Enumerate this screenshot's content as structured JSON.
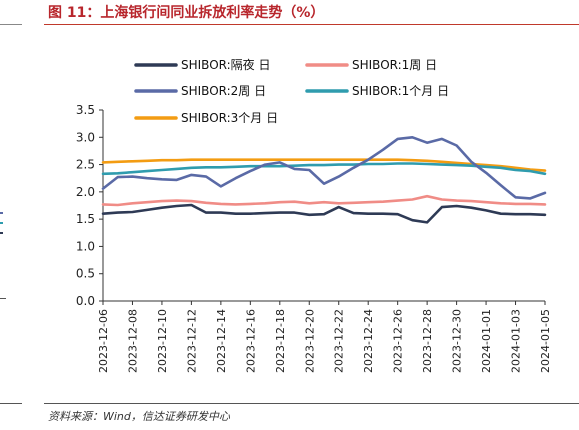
{
  "title": "图 11：上海银行间同业拆放利率走势（%）",
  "source": "资料来源：Wind，信达证券研发中心",
  "chart_data": {
    "type": "line",
    "ylim": [
      0,
      3.5
    ],
    "yticks": [
      "0.0",
      "0.5",
      "1.0",
      "1.5",
      "2.0",
      "2.5",
      "3.0",
      "3.5"
    ],
    "grid": false,
    "legend_position": "top",
    "x": [
      "2023-12-06",
      "2023-12-07",
      "2023-12-08",
      "2023-12-09",
      "2023-12-10",
      "2023-12-11",
      "2023-12-12",
      "2023-12-13",
      "2023-12-14",
      "2023-12-15",
      "2023-12-16",
      "2023-12-17",
      "2023-12-18",
      "2023-12-19",
      "2023-12-20",
      "2023-12-21",
      "2023-12-22",
      "2023-12-23",
      "2023-12-24",
      "2023-12-25",
      "2023-12-26",
      "2023-12-27",
      "2023-12-28",
      "2023-12-29",
      "2023-12-30",
      "2023-12-31",
      "2024-01-01",
      "2024-01-02",
      "2024-01-03",
      "2024-01-04",
      "2024-01-05"
    ],
    "xticks": [
      "2023-12-06",
      "2023-12-08",
      "2023-12-10",
      "2023-12-12",
      "2023-12-14",
      "2023-12-16",
      "2023-12-18",
      "2023-12-20",
      "2023-12-22",
      "2023-12-24",
      "2023-12-26",
      "2023-12-28",
      "2023-12-30",
      "2024-01-01",
      "2024-01-03",
      "2024-01-05"
    ],
    "series": [
      {
        "name": "SHIBOR:隔夜 日",
        "color": "#2e3a55",
        "values": [
          1.6,
          1.62,
          1.63,
          1.67,
          1.71,
          1.74,
          1.76,
          1.62,
          1.62,
          1.6,
          1.6,
          1.61,
          1.62,
          1.62,
          1.58,
          1.59,
          1.72,
          1.61,
          1.6,
          1.6,
          1.59,
          1.48,
          1.44,
          1.72,
          1.74,
          1.71,
          1.66,
          1.6,
          1.59,
          1.59,
          1.58
        ]
      },
      {
        "name": "SHIBOR:1周 日",
        "color": "#f08c86",
        "values": [
          1.77,
          1.76,
          1.79,
          1.81,
          1.83,
          1.84,
          1.83,
          1.8,
          1.78,
          1.77,
          1.78,
          1.79,
          1.81,
          1.82,
          1.79,
          1.81,
          1.79,
          1.8,
          1.81,
          1.82,
          1.84,
          1.86,
          1.92,
          1.86,
          1.84,
          1.83,
          1.81,
          1.79,
          1.78,
          1.78,
          1.77
        ]
      },
      {
        "name": "SHIBOR:2周 日",
        "color": "#5a6aa6",
        "values": [
          2.06,
          2.27,
          2.28,
          2.25,
          2.23,
          2.22,
          2.31,
          2.28,
          2.1,
          2.25,
          2.38,
          2.5,
          2.54,
          2.42,
          2.4,
          2.15,
          2.28,
          2.44,
          2.59,
          2.77,
          2.97,
          3.0,
          2.9,
          2.97,
          2.85,
          2.55,
          2.35,
          2.12,
          1.9,
          1.88,
          1.98
        ]
      },
      {
        "name": "SHIBOR:1个月 日",
        "color": "#2f9cae",
        "values": [
          2.33,
          2.34,
          2.36,
          2.38,
          2.4,
          2.42,
          2.44,
          2.45,
          2.45,
          2.46,
          2.47,
          2.47,
          2.47,
          2.48,
          2.49,
          2.49,
          2.5,
          2.5,
          2.51,
          2.51,
          2.52,
          2.52,
          2.51,
          2.5,
          2.49,
          2.48,
          2.46,
          2.44,
          2.4,
          2.38,
          2.33
        ]
      },
      {
        "name": "SHIBOR:3个月 日",
        "color": "#f39c12",
        "values": [
          2.54,
          2.55,
          2.56,
          2.57,
          2.58,
          2.58,
          2.59,
          2.59,
          2.59,
          2.59,
          2.59,
          2.59,
          2.59,
          2.59,
          2.59,
          2.59,
          2.59,
          2.59,
          2.59,
          2.59,
          2.59,
          2.58,
          2.57,
          2.55,
          2.53,
          2.51,
          2.49,
          2.47,
          2.44,
          2.41,
          2.39
        ]
      }
    ]
  }
}
